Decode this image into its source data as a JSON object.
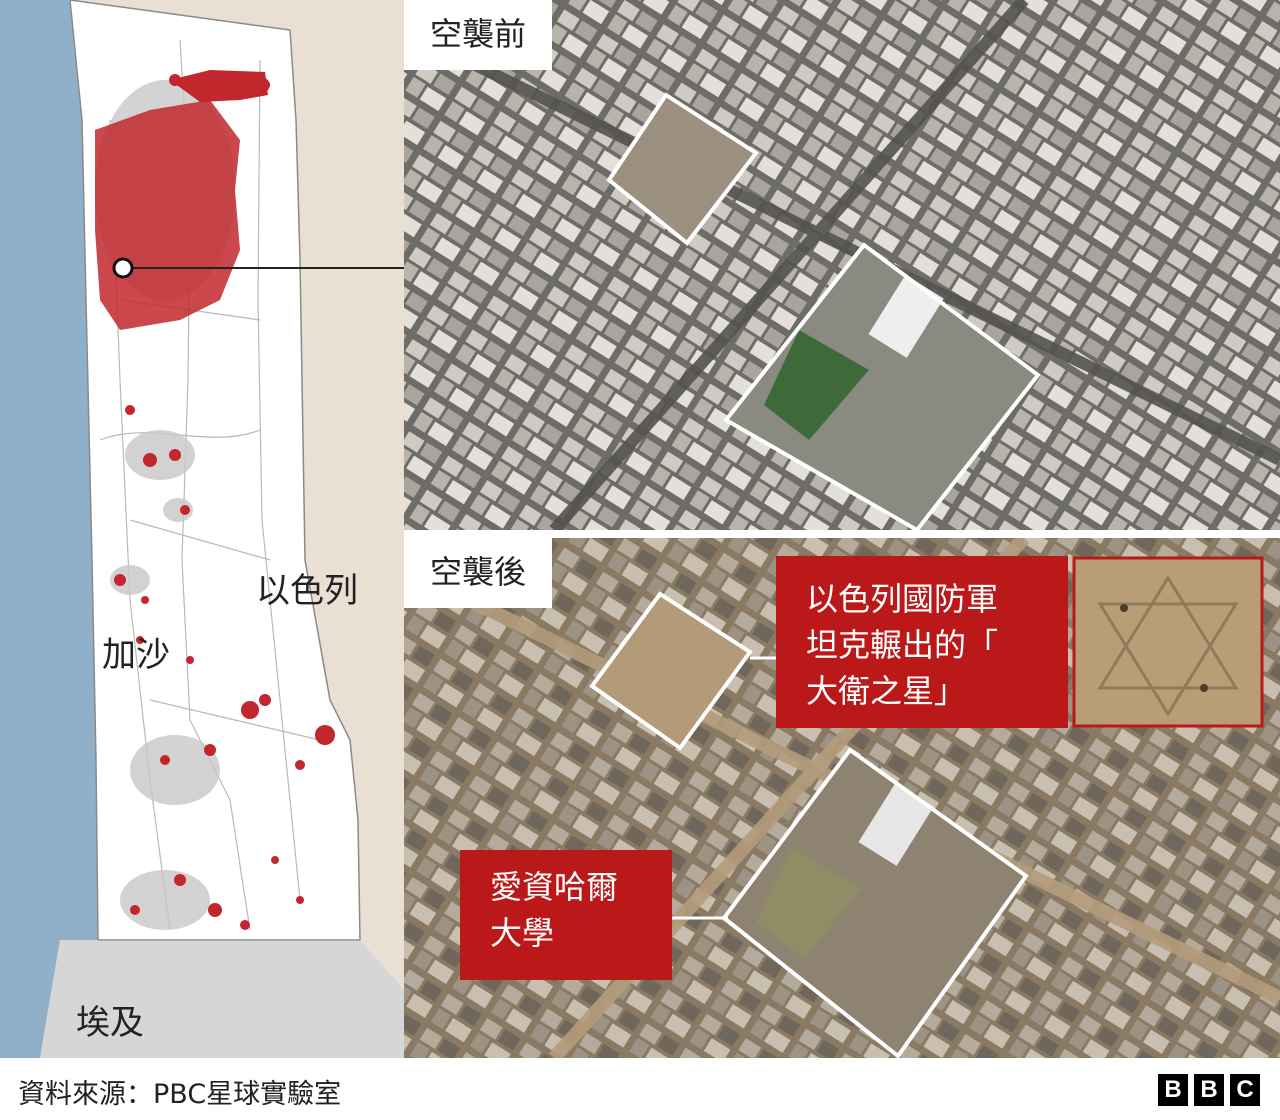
{
  "map": {
    "labels": {
      "israel": "以色列",
      "gaza": "加沙",
      "egypt": "埃及"
    },
    "colors": {
      "sea": "#8fb0c8",
      "land_israel": "#e9dfd3",
      "egypt": "#d6d6d6",
      "gaza_strip": "#ffffff",
      "damage": "#c1272d",
      "roads": "#b9b9b9"
    }
  },
  "images": {
    "before": {
      "label": "空襲前"
    },
    "after": {
      "label": "空襲後"
    }
  },
  "callouts": {
    "star": "以色列國防軍\n坦克輾出的「\n大衛之星」",
    "university": "愛資哈爾\n大學"
  },
  "footer": {
    "source": "資料來源：PBC星球實驗室",
    "logo_letters": [
      "B",
      "B",
      "C"
    ]
  }
}
